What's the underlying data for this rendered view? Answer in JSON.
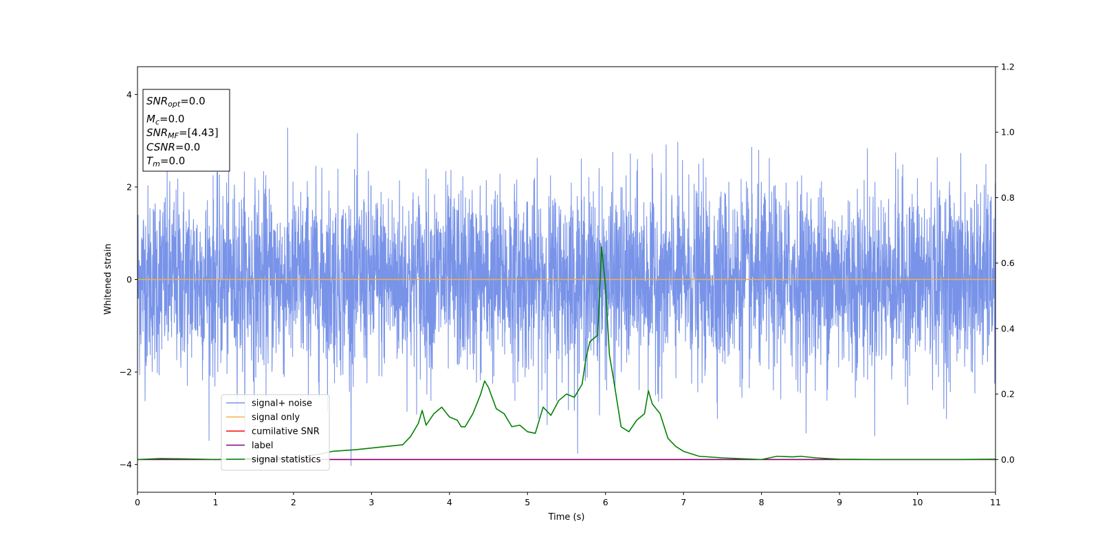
{
  "chart_data": {
    "type": "line",
    "title": "",
    "xlabel": "Time (s)",
    "ylabel_left": "Whitened strain",
    "ylabel_right": "",
    "xlim": [
      0,
      11
    ],
    "ylim_left": [
      -4.6,
      4.6
    ],
    "ylim_right": [
      -0.1,
      1.2
    ],
    "x_ticks": [
      "0",
      "1",
      "2",
      "3",
      "4",
      "5",
      "6",
      "7",
      "8",
      "9",
      "10",
      "11"
    ],
    "y_ticks_left": [
      "−4",
      "−2",
      "0",
      "2",
      "4"
    ],
    "y_ticks_right": [
      "0.0",
      "0.2",
      "0.4",
      "0.6",
      "0.8",
      "1.0",
      "1.2"
    ],
    "grid": false,
    "legend_position": "lower-left",
    "info_box": {
      "position": "top-left",
      "lines": [
        {
          "name": "SNR",
          "sub": "opt",
          "value": "=0.0"
        },
        {
          "name": "M",
          "sub": "c",
          "value": "=0.0"
        },
        {
          "name": "SNR",
          "sub": "MF",
          "value": "=[4.43]"
        },
        {
          "name": "CSNR",
          "sub": "",
          "value": "=0.0"
        },
        {
          "name": "T",
          "sub": "m",
          "value": "=0.0"
        }
      ]
    },
    "series": [
      {
        "name": "signal+ noise",
        "axis": "left",
        "color": "#7893e8",
        "kind": "noise",
        "mean": 0,
        "std": 1.0,
        "min": -4.15,
        "max": 4.1
      },
      {
        "name": "signal only",
        "axis": "left",
        "color": "#f0b24a",
        "x": [
          0,
          11
        ],
        "y": [
          0,
          0
        ]
      },
      {
        "name": "cumilative SNR",
        "axis": "right",
        "color": "#ff0000",
        "x": [
          0,
          11
        ],
        "y": [
          0,
          0
        ]
      },
      {
        "name": "label",
        "axis": "right",
        "color": "#800080",
        "x": [
          0,
          11
        ],
        "y": [
          0,
          0
        ]
      },
      {
        "name": "signal statistics",
        "axis": "right",
        "color": "#008000",
        "x": [
          0,
          0.3,
          0.6,
          1.0,
          1.3,
          1.6,
          2.0,
          2.3,
          2.5,
          2.8,
          3.0,
          3.2,
          3.4,
          3.5,
          3.6,
          3.65,
          3.7,
          3.8,
          3.9,
          4.0,
          4.1,
          4.15,
          4.2,
          4.3,
          4.4,
          4.45,
          4.5,
          4.6,
          4.7,
          4.8,
          4.9,
          5.0,
          5.1,
          5.2,
          5.3,
          5.4,
          5.5,
          5.6,
          5.7,
          5.75,
          5.8,
          5.9,
          5.95,
          6.0,
          6.05,
          6.1,
          6.2,
          6.3,
          6.4,
          6.5,
          6.55,
          6.6,
          6.7,
          6.8,
          6.9,
          7.0,
          7.2,
          7.5,
          8.0,
          8.2,
          8.4,
          8.5,
          8.7,
          9.0,
          9.5,
          10.0,
          10.5,
          11.0
        ],
        "y": [
          0.0,
          0.003,
          0.002,
          0.0,
          0.002,
          0.004,
          0.006,
          0.015,
          0.025,
          0.03,
          0.035,
          0.04,
          0.045,
          0.07,
          0.11,
          0.15,
          0.105,
          0.14,
          0.16,
          0.13,
          0.12,
          0.1,
          0.1,
          0.14,
          0.2,
          0.24,
          0.22,
          0.155,
          0.14,
          0.1,
          0.105,
          0.085,
          0.08,
          0.16,
          0.135,
          0.18,
          0.2,
          0.19,
          0.23,
          0.31,
          0.36,
          0.38,
          0.65,
          0.53,
          0.32,
          0.25,
          0.1,
          0.085,
          0.12,
          0.14,
          0.21,
          0.17,
          0.14,
          0.065,
          0.04,
          0.025,
          0.01,
          0.005,
          0.0,
          0.01,
          0.008,
          0.01,
          0.005,
          0.001,
          0.0,
          0.0,
          0.0,
          0.001
        ]
      }
    ]
  }
}
